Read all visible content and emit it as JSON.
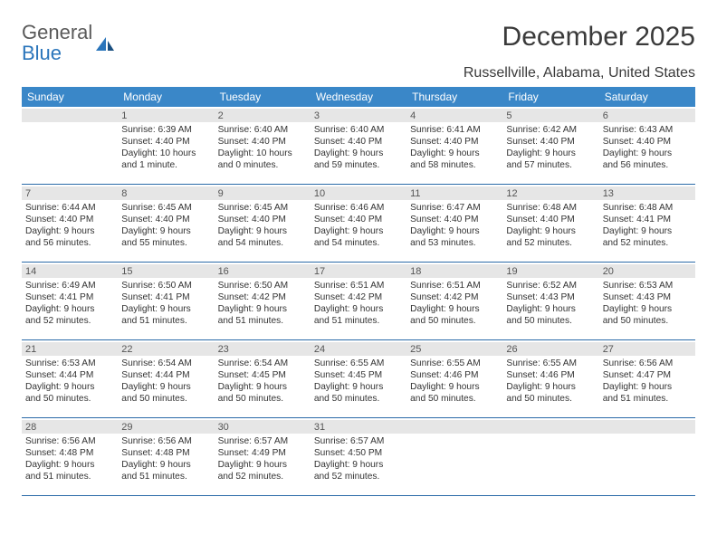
{
  "logo": {
    "text1": "General",
    "text2": "Blue"
  },
  "title": "December 2025",
  "location": "Russellville, Alabama, United States",
  "weekdays": [
    "Sunday",
    "Monday",
    "Tuesday",
    "Wednesday",
    "Thursday",
    "Friday",
    "Saturday"
  ],
  "colors": {
    "header_bg": "#3a87c8",
    "header_text": "#ffffff",
    "daynum_bg": "#e6e6e6",
    "border": "#2a6aa8",
    "text": "#333333",
    "logo_gray": "#5a5a5a",
    "logo_blue": "#2a75bb"
  },
  "weeks": [
    [
      {
        "num": "",
        "lines": []
      },
      {
        "num": "1",
        "lines": [
          "Sunrise: 6:39 AM",
          "Sunset: 4:40 PM",
          "Daylight: 10 hours",
          "and 1 minute."
        ]
      },
      {
        "num": "2",
        "lines": [
          "Sunrise: 6:40 AM",
          "Sunset: 4:40 PM",
          "Daylight: 10 hours",
          "and 0 minutes."
        ]
      },
      {
        "num": "3",
        "lines": [
          "Sunrise: 6:40 AM",
          "Sunset: 4:40 PM",
          "Daylight: 9 hours",
          "and 59 minutes."
        ]
      },
      {
        "num": "4",
        "lines": [
          "Sunrise: 6:41 AM",
          "Sunset: 4:40 PM",
          "Daylight: 9 hours",
          "and 58 minutes."
        ]
      },
      {
        "num": "5",
        "lines": [
          "Sunrise: 6:42 AM",
          "Sunset: 4:40 PM",
          "Daylight: 9 hours",
          "and 57 minutes."
        ]
      },
      {
        "num": "6",
        "lines": [
          "Sunrise: 6:43 AM",
          "Sunset: 4:40 PM",
          "Daylight: 9 hours",
          "and 56 minutes."
        ]
      }
    ],
    [
      {
        "num": "7",
        "lines": [
          "Sunrise: 6:44 AM",
          "Sunset: 4:40 PM",
          "Daylight: 9 hours",
          "and 56 minutes."
        ]
      },
      {
        "num": "8",
        "lines": [
          "Sunrise: 6:45 AM",
          "Sunset: 4:40 PM",
          "Daylight: 9 hours",
          "and 55 minutes."
        ]
      },
      {
        "num": "9",
        "lines": [
          "Sunrise: 6:45 AM",
          "Sunset: 4:40 PM",
          "Daylight: 9 hours",
          "and 54 minutes."
        ]
      },
      {
        "num": "10",
        "lines": [
          "Sunrise: 6:46 AM",
          "Sunset: 4:40 PM",
          "Daylight: 9 hours",
          "and 54 minutes."
        ]
      },
      {
        "num": "11",
        "lines": [
          "Sunrise: 6:47 AM",
          "Sunset: 4:40 PM",
          "Daylight: 9 hours",
          "and 53 minutes."
        ]
      },
      {
        "num": "12",
        "lines": [
          "Sunrise: 6:48 AM",
          "Sunset: 4:40 PM",
          "Daylight: 9 hours",
          "and 52 minutes."
        ]
      },
      {
        "num": "13",
        "lines": [
          "Sunrise: 6:48 AM",
          "Sunset: 4:41 PM",
          "Daylight: 9 hours",
          "and 52 minutes."
        ]
      }
    ],
    [
      {
        "num": "14",
        "lines": [
          "Sunrise: 6:49 AM",
          "Sunset: 4:41 PM",
          "Daylight: 9 hours",
          "and 52 minutes."
        ]
      },
      {
        "num": "15",
        "lines": [
          "Sunrise: 6:50 AM",
          "Sunset: 4:41 PM",
          "Daylight: 9 hours",
          "and 51 minutes."
        ]
      },
      {
        "num": "16",
        "lines": [
          "Sunrise: 6:50 AM",
          "Sunset: 4:42 PM",
          "Daylight: 9 hours",
          "and 51 minutes."
        ]
      },
      {
        "num": "17",
        "lines": [
          "Sunrise: 6:51 AM",
          "Sunset: 4:42 PM",
          "Daylight: 9 hours",
          "and 51 minutes."
        ]
      },
      {
        "num": "18",
        "lines": [
          "Sunrise: 6:51 AM",
          "Sunset: 4:42 PM",
          "Daylight: 9 hours",
          "and 50 minutes."
        ]
      },
      {
        "num": "19",
        "lines": [
          "Sunrise: 6:52 AM",
          "Sunset: 4:43 PM",
          "Daylight: 9 hours",
          "and 50 minutes."
        ]
      },
      {
        "num": "20",
        "lines": [
          "Sunrise: 6:53 AM",
          "Sunset: 4:43 PM",
          "Daylight: 9 hours",
          "and 50 minutes."
        ]
      }
    ],
    [
      {
        "num": "21",
        "lines": [
          "Sunrise: 6:53 AM",
          "Sunset: 4:44 PM",
          "Daylight: 9 hours",
          "and 50 minutes."
        ]
      },
      {
        "num": "22",
        "lines": [
          "Sunrise: 6:54 AM",
          "Sunset: 4:44 PM",
          "Daylight: 9 hours",
          "and 50 minutes."
        ]
      },
      {
        "num": "23",
        "lines": [
          "Sunrise: 6:54 AM",
          "Sunset: 4:45 PM",
          "Daylight: 9 hours",
          "and 50 minutes."
        ]
      },
      {
        "num": "24",
        "lines": [
          "Sunrise: 6:55 AM",
          "Sunset: 4:45 PM",
          "Daylight: 9 hours",
          "and 50 minutes."
        ]
      },
      {
        "num": "25",
        "lines": [
          "Sunrise: 6:55 AM",
          "Sunset: 4:46 PM",
          "Daylight: 9 hours",
          "and 50 minutes."
        ]
      },
      {
        "num": "26",
        "lines": [
          "Sunrise: 6:55 AM",
          "Sunset: 4:46 PM",
          "Daylight: 9 hours",
          "and 50 minutes."
        ]
      },
      {
        "num": "27",
        "lines": [
          "Sunrise: 6:56 AM",
          "Sunset: 4:47 PM",
          "Daylight: 9 hours",
          "and 51 minutes."
        ]
      }
    ],
    [
      {
        "num": "28",
        "lines": [
          "Sunrise: 6:56 AM",
          "Sunset: 4:48 PM",
          "Daylight: 9 hours",
          "and 51 minutes."
        ]
      },
      {
        "num": "29",
        "lines": [
          "Sunrise: 6:56 AM",
          "Sunset: 4:48 PM",
          "Daylight: 9 hours",
          "and 51 minutes."
        ]
      },
      {
        "num": "30",
        "lines": [
          "Sunrise: 6:57 AM",
          "Sunset: 4:49 PM",
          "Daylight: 9 hours",
          "and 52 minutes."
        ]
      },
      {
        "num": "31",
        "lines": [
          "Sunrise: 6:57 AM",
          "Sunset: 4:50 PM",
          "Daylight: 9 hours",
          "and 52 minutes."
        ]
      },
      {
        "num": "",
        "lines": []
      },
      {
        "num": "",
        "lines": []
      },
      {
        "num": "",
        "lines": []
      }
    ]
  ]
}
